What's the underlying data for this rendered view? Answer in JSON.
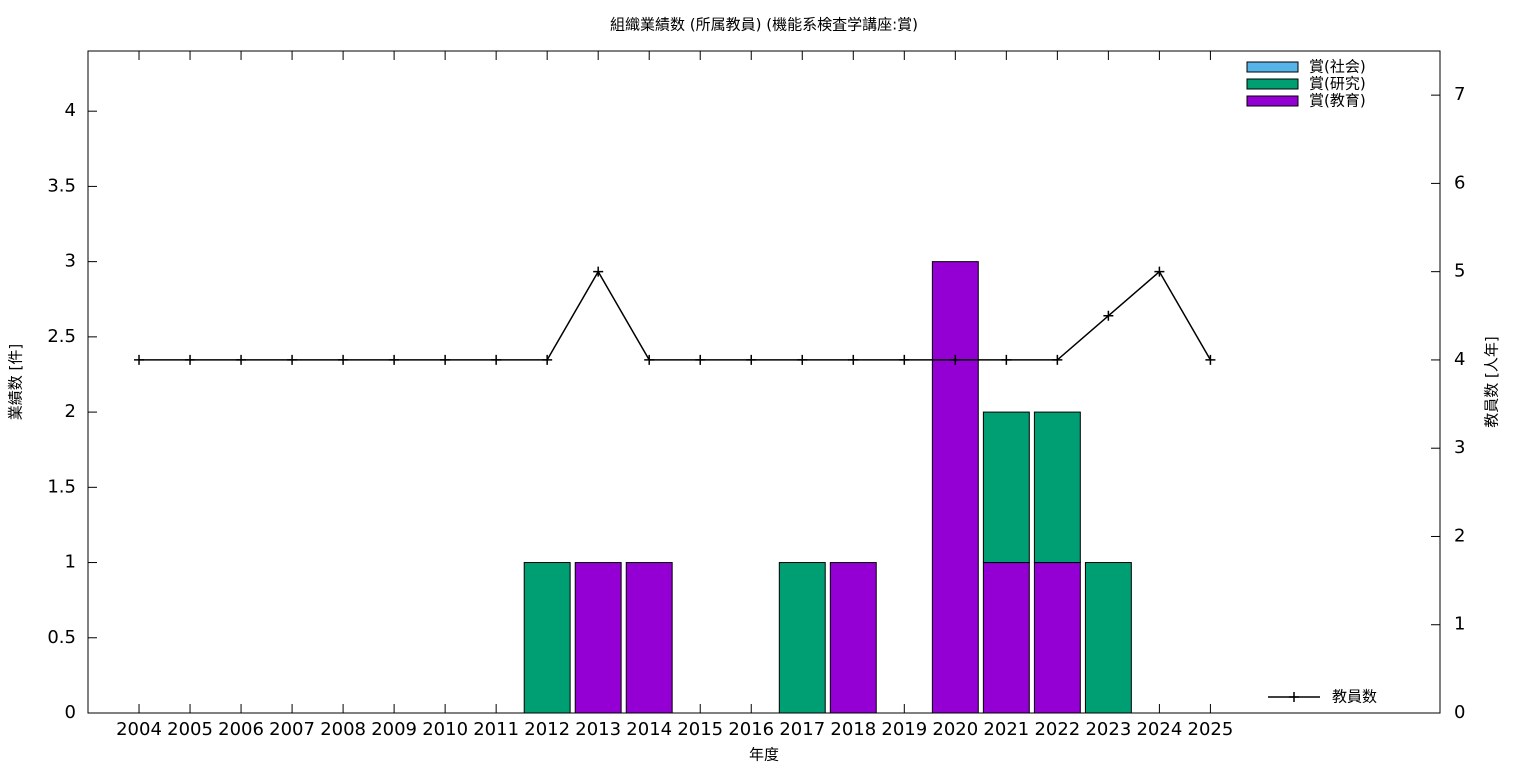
{
  "chart_data": {
    "type": "bar",
    "stacked": true,
    "title": "組織業績数 (所属教員) (機能系検査学講座:賞)",
    "x_label": "年度",
    "y_label": "業績数 [件]",
    "y2_label": "教員数 [人年]",
    "categories": [
      "2004",
      "2005",
      "2006",
      "2007",
      "2008",
      "2009",
      "2010",
      "2011",
      "2012",
      "2013",
      "2014",
      "2015",
      "2016",
      "2017",
      "2018",
      "2019",
      "2020",
      "2021",
      "2022",
      "2023",
      "2024",
      "2025"
    ],
    "series": [
      {
        "name": "賞(教育)",
        "color": "#9400d3",
        "values": [
          0,
          0,
          0,
          0,
          0,
          0,
          0,
          0,
          0,
          1,
          1,
          0,
          0,
          0,
          1,
          0,
          3,
          1,
          1,
          0,
          0,
          0
        ]
      },
      {
        "name": "賞(研究)",
        "color": "#009e73",
        "values": [
          0,
          0,
          0,
          0,
          0,
          0,
          0,
          0,
          1,
          0,
          0,
          0,
          0,
          1,
          0,
          0,
          0,
          1,
          1,
          1,
          0,
          0
        ]
      },
      {
        "name": "賞(社会)",
        "color": "#56b4e9",
        "values": [
          0,
          0,
          0,
          0,
          0,
          0,
          0,
          0,
          0,
          0,
          0,
          0,
          0,
          0,
          0,
          0,
          0,
          0,
          0,
          0,
          0,
          0
        ]
      },
      {
        "name": "教員数",
        "type": "line",
        "axis": "y2",
        "color": "#000000",
        "values": [
          4,
          4,
          4,
          4,
          4,
          4,
          4,
          4,
          4,
          5,
          4,
          4,
          4,
          4,
          4,
          4,
          4,
          4,
          4,
          4.5,
          5,
          4
        ]
      }
    ],
    "ylim": [
      0,
      4.4
    ],
    "yticks": [
      0,
      0.5,
      1,
      1.5,
      2,
      2.5,
      3,
      3.5,
      4
    ],
    "y2lim": [
      0,
      7.5
    ],
    "y2ticks": [
      0,
      1,
      2,
      3,
      4,
      5,
      6,
      7
    ],
    "legend": "top-right",
    "grid": false
  }
}
